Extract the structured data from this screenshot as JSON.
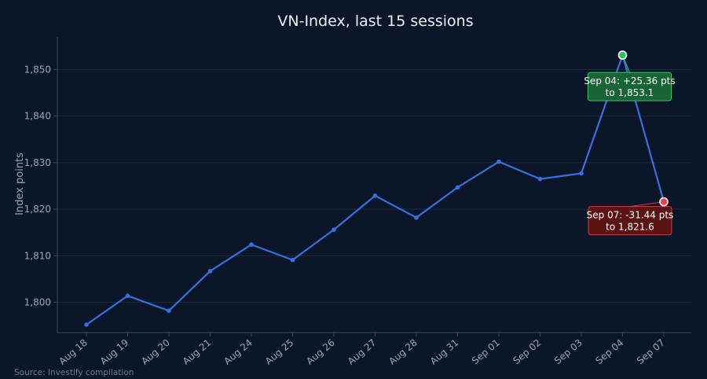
{
  "colors": {
    "background": "#0b1628",
    "line": "#3a6fe0",
    "grid": "#1d2a40",
    "axis": "#3a4a63",
    "peak_marker": "#2fbf5a",
    "trough_marker": "#e04848",
    "peak_box_fill": "#176534",
    "peak_box_stroke": "#3fbf6a",
    "trough_box_fill": "#5a1414",
    "trough_box_stroke": "#cc3d3d"
  },
  "source": "Source: Investify compilation",
  "chart_data": {
    "type": "line",
    "title": "VN-Index, last 15 sessions",
    "xlabel": "",
    "ylabel": "Index points",
    "categories": [
      "Aug 18",
      "Aug 19",
      "Aug 20",
      "Aug 21",
      "Aug 24",
      "Aug 25",
      "Aug 26",
      "Aug 27",
      "Aug 28",
      "Aug 31",
      "Sep 01",
      "Sep 02",
      "Sep 03",
      "Sep 04",
      "Sep 07"
    ],
    "values": [
      1795.2,
      1801.4,
      1798.2,
      1806.7,
      1812.4,
      1809.1,
      1815.6,
      1822.9,
      1818.2,
      1824.7,
      1830.2,
      1826.5,
      1827.7,
      1853.1,
      1821.6
    ],
    "ylim": [
      1793.5,
      1857
    ],
    "yticks": [
      1800,
      1810,
      1820,
      1830,
      1840,
      1850
    ],
    "ytick_labels": [
      "1,800",
      "1,810",
      "1,820",
      "1,830",
      "1,840",
      "1,850"
    ],
    "grid": true,
    "legend": "none",
    "annotations": [
      {
        "index": 13,
        "kind": "peak",
        "lines": [
          "Sep 04: +25.36 pts",
          "to 1,853.1"
        ]
      },
      {
        "index": 14,
        "kind": "trough",
        "lines": [
          "Sep 07: -31.44 pts",
          "to 1,821.6"
        ]
      }
    ]
  }
}
